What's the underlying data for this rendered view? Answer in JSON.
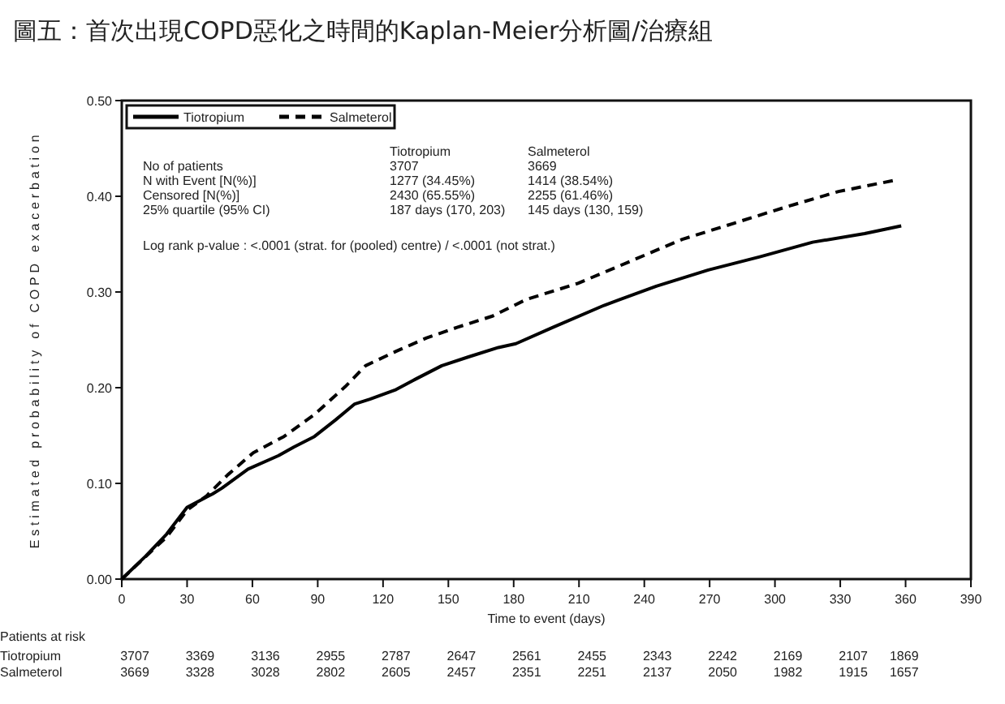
{
  "chart_data": {
    "type": "line",
    "title": "圖五：首次出現COPD惡化之時間的Kaplan-Meier分析圖/治療組",
    "xlabel": "Time to event (days)",
    "ylabel": "Estimated probability of COPD exacerbation",
    "xlim": [
      0,
      390
    ],
    "xticks": [
      0,
      30,
      60,
      90,
      120,
      150,
      180,
      210,
      240,
      270,
      300,
      330,
      360,
      390
    ],
    "ylim": [
      0,
      0.5
    ],
    "yticks": [
      {
        "value": 0,
        "label": "0.00"
      },
      {
        "value": 0.1,
        "label": "0.10"
      },
      {
        "value": 0.2,
        "label": "0.20"
      },
      {
        "value": 0.3,
        "label": "0.30"
      },
      {
        "value": 0.4,
        "label": "0.40"
      },
      {
        "value": 0.5,
        "label": "0.50"
      }
    ],
    "grid": false,
    "legend": "top left",
    "series": [
      {
        "name": "Tiotropium",
        "color": "#000000",
        "line_style": "solid",
        "x": [
          0,
          11,
          20.6,
          30,
          41.7,
          46,
          58,
          72,
          79,
          88.5,
          98,
          107,
          114,
          126,
          135,
          147,
          159,
          173,
          181,
          198,
          221.5,
          245.5,
          269.4,
          293.4,
          317.3,
          341.2,
          358
        ],
        "values": [
          0,
          0.024,
          0.047,
          0.075,
          0.089,
          0.095,
          0.115,
          0.129,
          0.138,
          0.149,
          0.166,
          0.183,
          0.188,
          0.198,
          0.209,
          0.223,
          0.232,
          0.242,
          0.246,
          0.263,
          0.286,
          0.306,
          0.323,
          0.337,
          0.352,
          0.361,
          0.369
        ]
      },
      {
        "name": "Salmeterol",
        "color": "#000000",
        "line_style": "dashed",
        "x": [
          0,
          20.6,
          30,
          39,
          48.7,
          60.4,
          74.5,
          88.5,
          102.6,
          112,
          126,
          140,
          154,
          170.5,
          185.6,
          209.5,
          233.5,
          257.4,
          281.4,
          305.3,
          329.2,
          355.6
        ],
        "values": [
          0,
          0.044,
          0.072,
          0.087,
          0.109,
          0.132,
          0.149,
          0.172,
          0.201,
          0.223,
          0.238,
          0.252,
          0.263,
          0.275,
          0.292,
          0.309,
          0.332,
          0.355,
          0.372,
          0.389,
          0.405,
          0.417
        ]
      }
    ],
    "annotations": [
      "Tiotropium",
      "Salmeterol",
      "No of patients",
      "3707",
      "3669",
      "N with Event [N(%)]",
      "1277 (34.45%)",
      "1414 (38.54%)",
      "Censored [N(%)]",
      "2430 (65.55%)",
      "2255 (61.46%)",
      "25% quartile (95% CI)",
      "187 days (170, 203)",
      "145 days (130, 159)",
      "Log rank p-value : <.0001 (strat. for (pooled) centre) / <.0001 (not strat.)",
      "Patients at risk",
      "Tiotropium",
      "3707",
      "3369",
      "3136",
      "2955",
      "2787",
      "2647",
      "2561",
      "2455",
      "2343",
      "2242",
      "2169",
      "2107",
      "1869",
      "Salmeterol",
      "3669",
      "3328",
      "3028",
      "2802",
      "2605",
      "2457",
      "2351",
      "2251",
      "2137",
      "2050",
      "1982",
      "1915",
      "1657"
    ]
  }
}
